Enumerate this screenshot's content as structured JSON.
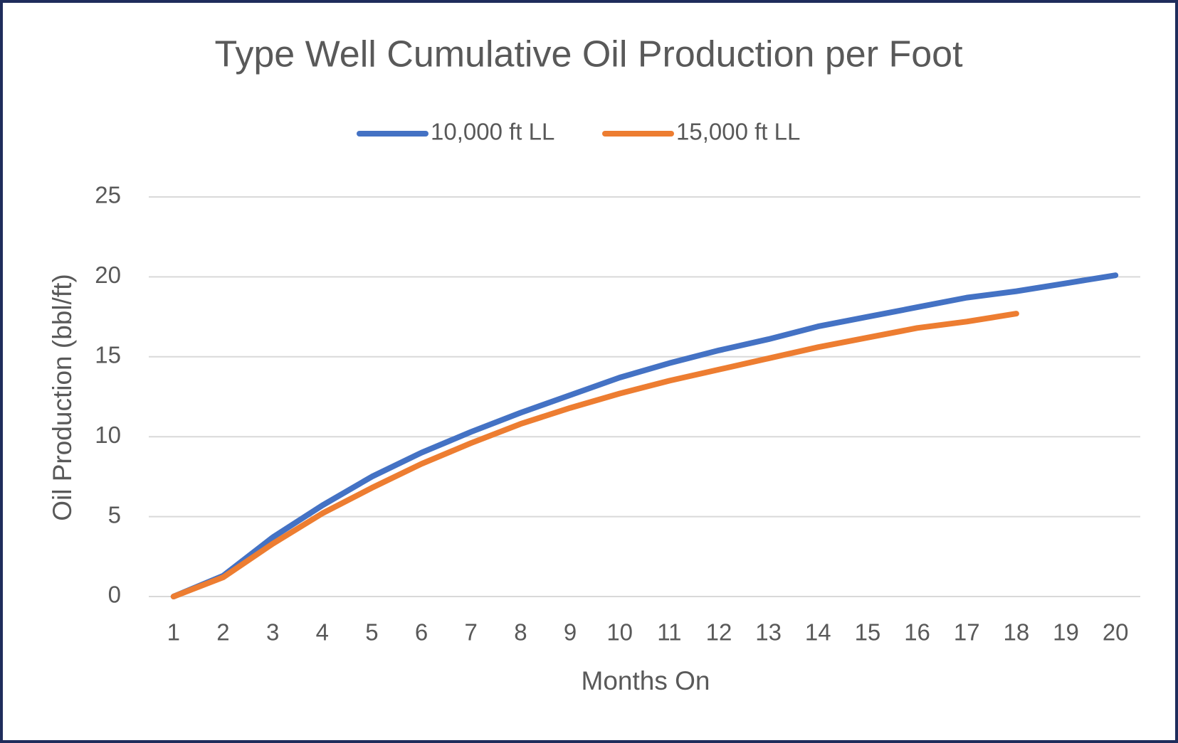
{
  "chart_data": {
    "type": "line",
    "title": "Type Well Cumulative Oil Production per Foot",
    "x_label": "Months On",
    "y_label": "Oil Production (bbl/ft)",
    "categories": [
      1,
      2,
      3,
      4,
      5,
      6,
      7,
      8,
      9,
      10,
      11,
      12,
      13,
      14,
      15,
      16,
      17,
      18,
      19,
      20
    ],
    "series": [
      {
        "name": "10,000 ft LL",
        "color": "#4472c4",
        "values": [
          0,
          1.3,
          3.7,
          5.7,
          7.5,
          9.0,
          10.3,
          11.5,
          12.6,
          13.7,
          14.6,
          15.4,
          16.1,
          16.9,
          17.5,
          18.1,
          18.7,
          19.1,
          19.6,
          20.1
        ]
      },
      {
        "name": "15,000 ft LL",
        "color": "#ed7d31",
        "values": [
          0,
          1.2,
          3.3,
          5.2,
          6.8,
          8.3,
          9.6,
          10.8,
          11.8,
          12.7,
          13.5,
          14.2,
          14.9,
          15.6,
          16.2,
          16.8,
          17.2,
          17.7,
          null,
          null
        ]
      }
    ],
    "ylim": [
      0,
      25
    ],
    "yticks": [
      0,
      5,
      10,
      15,
      20,
      25
    ],
    "grid": true,
    "legend": "top"
  }
}
